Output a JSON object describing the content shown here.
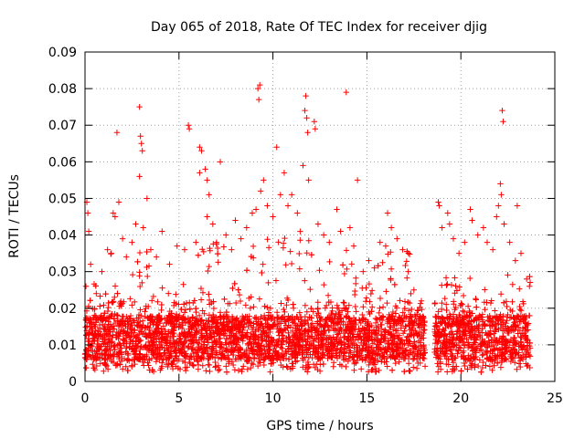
{
  "chart_data": {
    "type": "scatter",
    "title": "Day 065 of 2018, Rate Of TEC Index for receiver djig",
    "xlabel": "GPS time / hours",
    "ylabel": "ROTI / TECUs",
    "xlim": [
      0,
      25
    ],
    "ylim": [
      0,
      0.09
    ],
    "x_ticks": [
      0,
      5,
      10,
      15,
      20,
      25
    ],
    "x_tick_labels": [
      "0",
      "5",
      "10",
      "15",
      "20",
      "25"
    ],
    "y_ticks": [
      0,
      0.01,
      0.02,
      0.03,
      0.04,
      0.05,
      0.06,
      0.07,
      0.08,
      0.09
    ],
    "y_tick_labels": [
      "0",
      "0.01",
      "0.02",
      "0.03",
      "0.04",
      "0.05",
      "0.06",
      "0.07",
      "0.08",
      "0.09"
    ],
    "grid": true,
    "marker": "+",
    "color": "#ff0000",
    "data_gap_hours": [
      18.1,
      18.6
    ],
    "data_end_hours": 23.7,
    "series": [
      {
        "name": "ROTI",
        "points": [
          [
            0.05,
            0.026
          ],
          [
            0.1,
            0.049
          ],
          [
            0.15,
            0.046
          ],
          [
            0.2,
            0.041
          ],
          [
            0.3,
            0.032
          ],
          [
            0.6,
            0.024
          ],
          [
            0.9,
            0.03
          ],
          [
            1.2,
            0.036
          ],
          [
            1.4,
            0.035
          ],
          [
            1.5,
            0.046
          ],
          [
            1.6,
            0.045
          ],
          [
            1.7,
            0.068
          ],
          [
            1.8,
            0.049
          ],
          [
            2.0,
            0.039
          ],
          [
            2.2,
            0.034
          ],
          [
            2.5,
            0.038
          ],
          [
            2.7,
            0.043
          ],
          [
            2.9,
            0.075
          ],
          [
            2.95,
            0.067
          ],
          [
            3.0,
            0.065
          ],
          [
            3.05,
            0.063
          ],
          [
            2.9,
            0.056
          ],
          [
            3.1,
            0.042
          ],
          [
            3.3,
            0.05
          ],
          [
            3.5,
            0.036
          ],
          [
            3.8,
            0.034
          ],
          [
            4.1,
            0.041
          ],
          [
            4.5,
            0.032
          ],
          [
            4.9,
            0.037
          ],
          [
            5.3,
            0.036
          ],
          [
            5.5,
            0.07
          ],
          [
            5.55,
            0.069
          ],
          [
            5.9,
            0.038
          ],
          [
            6.1,
            0.064
          ],
          [
            6.2,
            0.063
          ],
          [
            6.1,
            0.057
          ],
          [
            6.4,
            0.058
          ],
          [
            6.5,
            0.055
          ],
          [
            6.6,
            0.051
          ],
          [
            6.5,
            0.045
          ],
          [
            6.8,
            0.043
          ],
          [
            7.0,
            0.038
          ],
          [
            7.2,
            0.06
          ],
          [
            7.5,
            0.04
          ],
          [
            7.8,
            0.036
          ],
          [
            8.0,
            0.044
          ],
          [
            8.3,
            0.039
          ],
          [
            8.6,
            0.042
          ],
          [
            8.9,
            0.046
          ],
          [
            9.1,
            0.047
          ],
          [
            9.2,
            0.08
          ],
          [
            9.25,
            0.077
          ],
          [
            9.3,
            0.081
          ],
          [
            9.35,
            0.052
          ],
          [
            9.5,
            0.055
          ],
          [
            9.7,
            0.048
          ],
          [
            10.0,
            0.045
          ],
          [
            10.2,
            0.064
          ],
          [
            10.4,
            0.051
          ],
          [
            10.6,
            0.057
          ],
          [
            10.8,
            0.048
          ],
          [
            11.0,
            0.051
          ],
          [
            11.3,
            0.046
          ],
          [
            11.6,
            0.059
          ],
          [
            11.7,
            0.074
          ],
          [
            11.75,
            0.078
          ],
          [
            11.8,
            0.072
          ],
          [
            11.85,
            0.068
          ],
          [
            11.9,
            0.055
          ],
          [
            12.2,
            0.071
          ],
          [
            12.25,
            0.069
          ],
          [
            12.4,
            0.043
          ],
          [
            12.7,
            0.04
          ],
          [
            13.0,
            0.038
          ],
          [
            13.4,
            0.047
          ],
          [
            13.6,
            0.041
          ],
          [
            13.9,
            0.079
          ],
          [
            14.1,
            0.042
          ],
          [
            14.3,
            0.037
          ],
          [
            14.5,
            0.055
          ],
          [
            14.8,
            0.03
          ],
          [
            15.1,
            0.033
          ],
          [
            15.4,
            0.031
          ],
          [
            15.7,
            0.038
          ],
          [
            16.0,
            0.037
          ],
          [
            16.1,
            0.046
          ],
          [
            16.3,
            0.042
          ],
          [
            16.6,
            0.039
          ],
          [
            16.9,
            0.036
          ],
          [
            17.2,
            0.03
          ],
          [
            17.5,
            0.025
          ],
          [
            17.9,
            0.022
          ],
          [
            18.8,
            0.049
          ],
          [
            18.85,
            0.048
          ],
          [
            19.0,
            0.042
          ],
          [
            19.3,
            0.046
          ],
          [
            19.4,
            0.043
          ],
          [
            19.6,
            0.039
          ],
          [
            19.9,
            0.035
          ],
          [
            20.2,
            0.038
          ],
          [
            20.5,
            0.047
          ],
          [
            20.6,
            0.044
          ],
          [
            20.9,
            0.04
          ],
          [
            21.2,
            0.042
          ],
          [
            21.4,
            0.038
          ],
          [
            21.7,
            0.036
          ],
          [
            21.9,
            0.045
          ],
          [
            22.0,
            0.048
          ],
          [
            22.1,
            0.054
          ],
          [
            22.15,
            0.051
          ],
          [
            22.2,
            0.074
          ],
          [
            22.25,
            0.071
          ],
          [
            22.3,
            0.043
          ],
          [
            22.6,
            0.038
          ],
          [
            22.9,
            0.033
          ],
          [
            23.0,
            0.048
          ],
          [
            23.2,
            0.035
          ],
          [
            23.5,
            0.028
          ],
          [
            23.65,
            0.026
          ]
        ]
      }
    ]
  }
}
